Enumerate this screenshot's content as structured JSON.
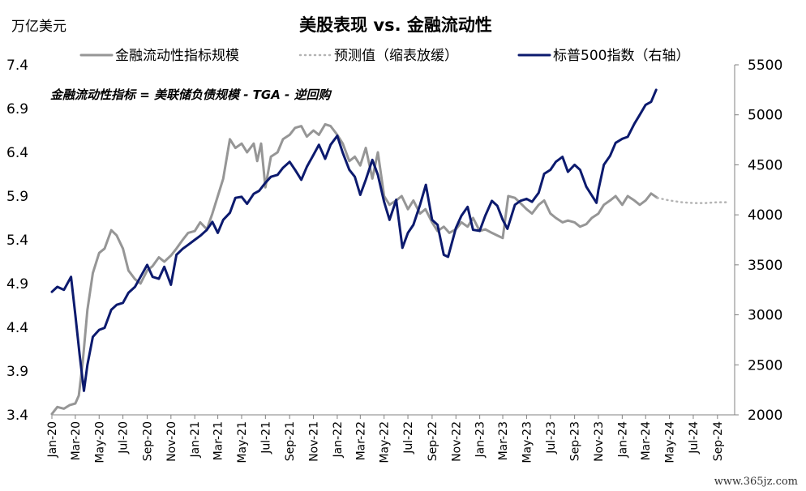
{
  "chart_data": {
    "type": "line",
    "title": "美股表现 vs. 金融流动性",
    "left_axis_unit": "万亿美元",
    "annotation": "金融流动性指标 = 美联储负债规模 - TGA - 逆回购",
    "watermark": "www.365jz.com",
    "left_ylim": [
      3.4,
      7.4
    ],
    "left_ticks": [
      "3.4",
      "3.9",
      "4.4",
      "4.9",
      "5.4",
      "5.9",
      "6.4",
      "6.9",
      "7.4"
    ],
    "right_ylim": [
      2000,
      5500
    ],
    "right_ticks": [
      "2000",
      "2500",
      "3000",
      "3500",
      "4000",
      "4500",
      "5000",
      "5500"
    ],
    "x_tick_labels": [
      "Jan-20",
      "Mar-20",
      "May-20",
      "Jul-20",
      "Sep-20",
      "Nov-20",
      "Jan-21",
      "Mar-21",
      "May-21",
      "Jul-21",
      "Sep-21",
      "Nov-21",
      "Jan-22",
      "Mar-22",
      "May-22",
      "Jul-22",
      "Sep-22",
      "Nov-22",
      "Jan-23",
      "Mar-23",
      "May-23",
      "Jul-23",
      "Sep-23",
      "Nov-23",
      "Jan-24",
      "Mar-24",
      "May-24",
      "Jul-24",
      "Sep-24"
    ],
    "legend": [
      {
        "name": "金融流动性指标规模",
        "color": "#969696",
        "style": "solid"
      },
      {
        "name": "预测值（缩表放缓）",
        "color": "#b4b4b4",
        "style": "dotted"
      },
      {
        "name": "标普500指数（右轴）",
        "color": "#0c1a6e",
        "style": "solid"
      }
    ],
    "series": [
      {
        "name": "金融流动性指标规模",
        "axis": "left",
        "points": [
          [
            "2020-01-01",
            3.41
          ],
          [
            "2020-01-15",
            3.49
          ],
          [
            "2020-02-01",
            3.47
          ],
          [
            "2020-02-15",
            3.51
          ],
          [
            "2020-03-01",
            3.53
          ],
          [
            "2020-03-10",
            3.62
          ],
          [
            "2020-03-20",
            4.0
          ],
          [
            "2020-04-01",
            4.6
          ],
          [
            "2020-04-15",
            5.02
          ],
          [
            "2020-05-01",
            5.25
          ],
          [
            "2020-05-15",
            5.3
          ],
          [
            "2020-06-01",
            5.51
          ],
          [
            "2020-06-15",
            5.45
          ],
          [
            "2020-07-01",
            5.3
          ],
          [
            "2020-07-15",
            5.05
          ],
          [
            "2020-08-01",
            4.95
          ],
          [
            "2020-08-15",
            4.9
          ],
          [
            "2020-09-01",
            5.05
          ],
          [
            "2020-09-15",
            5.1
          ],
          [
            "2020-10-01",
            5.2
          ],
          [
            "2020-10-15",
            5.15
          ],
          [
            "2020-11-01",
            5.22
          ],
          [
            "2020-11-15",
            5.3
          ],
          [
            "2020-12-01",
            5.4
          ],
          [
            "2020-12-15",
            5.48
          ],
          [
            "2021-01-01",
            5.5
          ],
          [
            "2021-01-15",
            5.6
          ],
          [
            "2021-02-01",
            5.52
          ],
          [
            "2021-02-15",
            5.7
          ],
          [
            "2021-03-01",
            5.9
          ],
          [
            "2021-03-15",
            6.1
          ],
          [
            "2021-04-01",
            6.55
          ],
          [
            "2021-04-15",
            6.45
          ],
          [
            "2021-05-01",
            6.5
          ],
          [
            "2021-05-15",
            6.4
          ],
          [
            "2021-06-01",
            6.5
          ],
          [
            "2021-06-10",
            6.3
          ],
          [
            "2021-06-20",
            6.5
          ],
          [
            "2021-07-01",
            6.0
          ],
          [
            "2021-07-15",
            6.35
          ],
          [
            "2021-08-01",
            6.4
          ],
          [
            "2021-08-15",
            6.55
          ],
          [
            "2021-09-01",
            6.6
          ],
          [
            "2021-09-15",
            6.68
          ],
          [
            "2021-10-01",
            6.7
          ],
          [
            "2021-10-15",
            6.58
          ],
          [
            "2021-11-01",
            6.65
          ],
          [
            "2021-11-15",
            6.6
          ],
          [
            "2021-12-01",
            6.72
          ],
          [
            "2021-12-15",
            6.7
          ],
          [
            "2022-01-01",
            6.6
          ],
          [
            "2022-01-15",
            6.5
          ],
          [
            "2022-02-01",
            6.3
          ],
          [
            "2022-02-15",
            6.35
          ],
          [
            "2022-03-01",
            6.25
          ],
          [
            "2022-03-15",
            6.45
          ],
          [
            "2022-04-01",
            6.1
          ],
          [
            "2022-04-15",
            6.4
          ],
          [
            "2022-05-01",
            5.9
          ],
          [
            "2022-05-15",
            5.8
          ],
          [
            "2022-06-01",
            5.85
          ],
          [
            "2022-06-15",
            5.9
          ],
          [
            "2022-07-01",
            5.75
          ],
          [
            "2022-07-15",
            5.85
          ],
          [
            "2022-08-01",
            5.7
          ],
          [
            "2022-08-15",
            5.75
          ],
          [
            "2022-09-01",
            5.6
          ],
          [
            "2022-09-15",
            5.5
          ],
          [
            "2022-10-01",
            5.55
          ],
          [
            "2022-10-15",
            5.48
          ],
          [
            "2022-11-01",
            5.52
          ],
          [
            "2022-11-15",
            5.6
          ],
          [
            "2022-12-01",
            5.55
          ],
          [
            "2022-12-15",
            5.65
          ],
          [
            "2023-01-01",
            5.5
          ],
          [
            "2023-01-15",
            5.52
          ],
          [
            "2023-02-01",
            5.48
          ],
          [
            "2023-02-15",
            5.45
          ],
          [
            "2023-03-01",
            5.42
          ],
          [
            "2023-03-15",
            5.9
          ],
          [
            "2023-04-01",
            5.88
          ],
          [
            "2023-04-15",
            5.82
          ],
          [
            "2023-05-01",
            5.75
          ],
          [
            "2023-05-15",
            5.7
          ],
          [
            "2023-06-01",
            5.8
          ],
          [
            "2023-06-15",
            5.85
          ],
          [
            "2023-07-01",
            5.7
          ],
          [
            "2023-07-15",
            5.65
          ],
          [
            "2023-08-01",
            5.6
          ],
          [
            "2023-08-15",
            5.62
          ],
          [
            "2023-09-01",
            5.6
          ],
          [
            "2023-09-15",
            5.55
          ],
          [
            "2023-10-01",
            5.58
          ],
          [
            "2023-10-15",
            5.65
          ],
          [
            "2023-11-01",
            5.7
          ],
          [
            "2023-11-15",
            5.8
          ],
          [
            "2023-12-01",
            5.85
          ],
          [
            "2023-12-15",
            5.9
          ],
          [
            "2024-01-01",
            5.8
          ],
          [
            "2024-01-15",
            5.9
          ],
          [
            "2024-02-01",
            5.85
          ],
          [
            "2024-02-15",
            5.8
          ],
          [
            "2024-03-01",
            5.85
          ],
          [
            "2024-03-15",
            5.93
          ],
          [
            "2024-03-31",
            5.88
          ]
        ]
      },
      {
        "name": "预测值（缩表放缓）",
        "axis": "left",
        "points": [
          [
            "2024-03-31",
            5.88
          ],
          [
            "2024-05-01",
            5.85
          ],
          [
            "2024-06-01",
            5.83
          ],
          [
            "2024-07-01",
            5.82
          ],
          [
            "2024-08-01",
            5.82
          ],
          [
            "2024-09-01",
            5.83
          ],
          [
            "2024-09-30",
            5.83
          ]
        ]
      },
      {
        "name": "标普500指数（右轴）",
        "axis": "right",
        "points": [
          [
            "2020-01-01",
            3230
          ],
          [
            "2020-01-15",
            3280
          ],
          [
            "2020-02-01",
            3250
          ],
          [
            "2020-02-19",
            3380
          ],
          [
            "2020-03-01",
            3000
          ],
          [
            "2020-03-12",
            2600
          ],
          [
            "2020-03-23",
            2240
          ],
          [
            "2020-04-01",
            2500
          ],
          [
            "2020-04-15",
            2780
          ],
          [
            "2020-05-01",
            2850
          ],
          [
            "2020-05-15",
            2870
          ],
          [
            "2020-06-01",
            3050
          ],
          [
            "2020-06-15",
            3100
          ],
          [
            "2020-07-01",
            3120
          ],
          [
            "2020-07-15",
            3220
          ],
          [
            "2020-08-01",
            3280
          ],
          [
            "2020-08-15",
            3380
          ],
          [
            "2020-09-01",
            3500
          ],
          [
            "2020-09-15",
            3380
          ],
          [
            "2020-10-01",
            3360
          ],
          [
            "2020-10-15",
            3480
          ],
          [
            "2020-11-01",
            3300
          ],
          [
            "2020-11-15",
            3600
          ],
          [
            "2020-12-01",
            3660
          ],
          [
            "2020-12-15",
            3700
          ],
          [
            "2021-01-01",
            3750
          ],
          [
            "2021-01-15",
            3790
          ],
          [
            "2021-02-01",
            3850
          ],
          [
            "2021-02-15",
            3930
          ],
          [
            "2021-03-01",
            3820
          ],
          [
            "2021-03-15",
            3950
          ],
          [
            "2021-04-01",
            4020
          ],
          [
            "2021-04-15",
            4170
          ],
          [
            "2021-05-01",
            4180
          ],
          [
            "2021-05-15",
            4110
          ],
          [
            "2021-06-01",
            4210
          ],
          [
            "2021-06-15",
            4240
          ],
          [
            "2021-07-01",
            4320
          ],
          [
            "2021-07-15",
            4380
          ],
          [
            "2021-08-01",
            4400
          ],
          [
            "2021-08-15",
            4470
          ],
          [
            "2021-09-01",
            4530
          ],
          [
            "2021-09-15",
            4450
          ],
          [
            "2021-10-01",
            4350
          ],
          [
            "2021-10-15",
            4480
          ],
          [
            "2021-11-01",
            4600
          ],
          [
            "2021-11-15",
            4700
          ],
          [
            "2021-12-01",
            4560
          ],
          [
            "2021-12-15",
            4700
          ],
          [
            "2022-01-01",
            4790
          ],
          [
            "2022-01-15",
            4620
          ],
          [
            "2022-02-01",
            4450
          ],
          [
            "2022-02-15",
            4380
          ],
          [
            "2022-03-01",
            4200
          ],
          [
            "2022-03-15",
            4350
          ],
          [
            "2022-04-01",
            4550
          ],
          [
            "2022-04-15",
            4400
          ],
          [
            "2022-05-01",
            4130
          ],
          [
            "2022-05-15",
            3950
          ],
          [
            "2022-06-01",
            4150
          ],
          [
            "2022-06-17",
            3670
          ],
          [
            "2022-07-01",
            3820
          ],
          [
            "2022-07-15",
            3900
          ],
          [
            "2022-08-01",
            4100
          ],
          [
            "2022-08-16",
            4300
          ],
          [
            "2022-09-01",
            3950
          ],
          [
            "2022-09-15",
            3900
          ],
          [
            "2022-10-01",
            3600
          ],
          [
            "2022-10-12",
            3580
          ],
          [
            "2022-11-01",
            3870
          ],
          [
            "2022-11-15",
            3990
          ],
          [
            "2022-12-01",
            4080
          ],
          [
            "2022-12-15",
            3850
          ],
          [
            "2023-01-01",
            3840
          ],
          [
            "2023-01-15",
            3990
          ],
          [
            "2023-02-01",
            4140
          ],
          [
            "2023-02-15",
            4090
          ],
          [
            "2023-03-01",
            3950
          ],
          [
            "2023-03-13",
            3860
          ],
          [
            "2023-04-01",
            4100
          ],
          [
            "2023-04-15",
            4140
          ],
          [
            "2023-05-01",
            4160
          ],
          [
            "2023-05-15",
            4130
          ],
          [
            "2023-06-01",
            4220
          ],
          [
            "2023-06-15",
            4410
          ],
          [
            "2023-07-01",
            4450
          ],
          [
            "2023-07-15",
            4530
          ],
          [
            "2023-08-01",
            4580
          ],
          [
            "2023-08-15",
            4430
          ],
          [
            "2023-09-01",
            4500
          ],
          [
            "2023-09-15",
            4450
          ],
          [
            "2023-10-01",
            4280
          ],
          [
            "2023-10-27",
            4120
          ],
          [
            "2023-11-01",
            4250
          ],
          [
            "2023-11-15",
            4500
          ],
          [
            "2023-12-01",
            4590
          ],
          [
            "2023-12-15",
            4720
          ],
          [
            "2024-01-01",
            4760
          ],
          [
            "2024-01-15",
            4780
          ],
          [
            "2024-02-01",
            4910
          ],
          [
            "2024-02-15",
            5000
          ],
          [
            "2024-03-01",
            5100
          ],
          [
            "2024-03-15",
            5130
          ],
          [
            "2024-03-28",
            5250
          ]
        ]
      }
    ]
  }
}
